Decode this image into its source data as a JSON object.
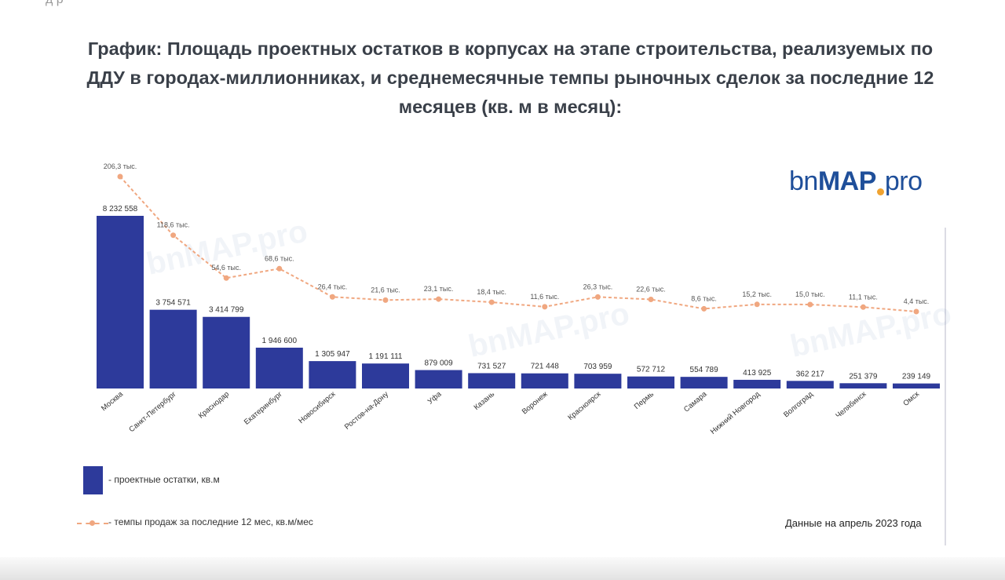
{
  "header": {
    "top_fragment": "д                          р",
    "title_lines": [
      "График: Площадь проектных остатков в корпусах на этапе строительства, реализуемых по",
      "ДДУ в городах-миллионниках, и среднемесячные темпы рыночных сделок за последние 12",
      "месяцев (кв. м в месяц):"
    ]
  },
  "logo": {
    "prefix": "bn",
    "brand": "MAP",
    "suffix": "pro"
  },
  "watermark": "bnMAP.pro",
  "legend": {
    "bar_label": "- проектные остатки, кв.м",
    "line_label": "- темпы продаж за последние 12 мес, кв.м/мес"
  },
  "note": "Данные на апрель 2023 года",
  "colors": {
    "bar": "#2d3a9b",
    "line": "#f0a780",
    "title": "#3a4049"
  },
  "chart_data": {
    "type": "bar",
    "categories": [
      "Москва",
      "Санкт-Петербург",
      "Краснодар",
      "Екатеринбург",
      "Новосибирск",
      "Ростов-на-Дону",
      "Уфа",
      "Казань",
      "Воронеж",
      "Красноярск",
      "Пермь",
      "Самара",
      "Нижний Новгород",
      "Волгоград",
      "Челябинск",
      "Омск"
    ],
    "series": [
      {
        "name": "проектные остатки, кв.м",
        "type": "bar",
        "values": [
          8232558,
          3754571,
          3414799,
          1946600,
          1305947,
          1191111,
          879009,
          731527,
          721448,
          703959,
          572712,
          554789,
          413925,
          362217,
          251379,
          239149
        ],
        "labels": [
          "8 232 558",
          "3 754 571",
          "3 414 799",
          "1 946 600",
          "1 305 947",
          "1 191 111",
          "879 009",
          "731 527",
          "721 448",
          "703 959",
          "572 712",
          "554 789",
          "413 925",
          "362 217",
          "251 379",
          "239 149"
        ]
      },
      {
        "name": "темпы продаж за последние 12 мес, кв.м/мес",
        "type": "line",
        "values": [
          206.3,
          118.6,
          54.6,
          68.6,
          26.4,
          21.6,
          23.1,
          18.4,
          11.6,
          26.3,
          22.6,
          8.6,
          15.2,
          15.0,
          11.1,
          4.4
        ],
        "labels": [
          "206,3 тыс.",
          "118,6 тыс.",
          "54,6 тыс.",
          "68,6 тыс.",
          "26,4 тыс.",
          "21,6 тыс.",
          "23,1 тыс.",
          "18,4 тыс.",
          "11,6 тыс.",
          "26,3 тыс.",
          "22,6 тыс.",
          "8,6 тыс.",
          "15,2 тыс.",
          "15,0 тыс.",
          "11,1 тыс.",
          "4,4 тыс."
        ]
      }
    ],
    "legend_position": "bottom-left",
    "grid": false
  }
}
